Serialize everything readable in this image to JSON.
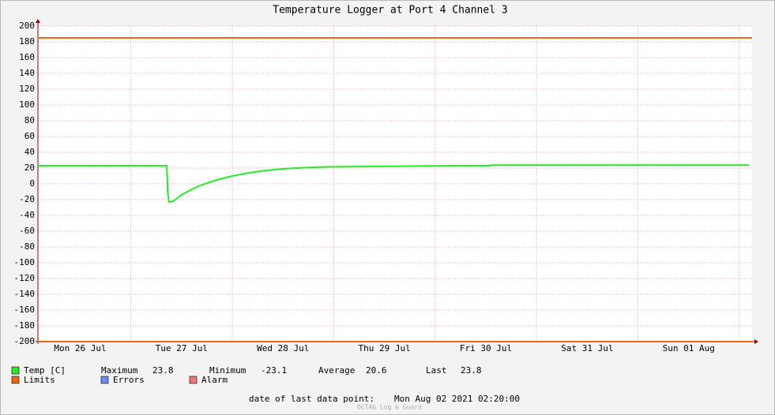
{
  "chart_data": {
    "type": "line",
    "title": "Temperature Logger at Port 4 Channel 3",
    "x": [
      2,
      32.5,
      32.7,
      33,
      34,
      35,
      36,
      38,
      40,
      42,
      45,
      48,
      52,
      56,
      60,
      65,
      70,
      80,
      90,
      100,
      108.9,
      109,
      130,
      150,
      170.3
    ],
    "series": [
      {
        "name": "Temp [C]",
        "color": "#22ee22",
        "values": [
          23,
          23,
          -10,
          -23,
          -22,
          -18,
          -14,
          -8,
          -3,
          1,
          6,
          10,
          14,
          17,
          19,
          20.5,
          21.5,
          22,
          22.5,
          23,
          23,
          23.8,
          23.8,
          23.8,
          23.8
        ]
      },
      {
        "name": "Limits",
        "color": "#ee6611",
        "limits": [
          185,
          -200
        ]
      },
      {
        "name": "Errors",
        "color": "#7788ee"
      },
      {
        "name": "Alarm",
        "color": "#ee7777"
      }
    ],
    "stats": [
      {
        "label": "Maximum",
        "value": 23.8
      },
      {
        "label": "Minimum",
        "value": -23.1
      },
      {
        "label": "Average",
        "value": 20.6
      },
      {
        "label": "Last",
        "value": 23.8
      }
    ],
    "xlim": [
      2,
      171
    ],
    "xticks": [
      {
        "value": 12,
        "label": "Mon 26 Jul"
      },
      {
        "value": 36,
        "label": "Tue 27 Jul"
      },
      {
        "value": 60,
        "label": "Wed 28 Jul"
      },
      {
        "value": 84,
        "label": "Thu 29 Jul"
      },
      {
        "value": 108,
        "label": "Fri 30 Jul"
      },
      {
        "value": 132,
        "label": "Sat 31 Jul"
      },
      {
        "value": 156,
        "label": "Sun 01 Aug"
      }
    ],
    "xgrid": [
      24,
      48,
      72,
      96,
      120,
      144,
      168
    ],
    "ylim": [
      -200,
      200
    ],
    "yticks": [
      -200,
      -180,
      -160,
      -140,
      -120,
      -100,
      -80,
      -60,
      -40,
      -20,
      0,
      20,
      40,
      60,
      80,
      100,
      120,
      140,
      160,
      180,
      200
    ],
    "grid": true,
    "footer_label": "date of last data point:",
    "footer_date": "Mon Aug 02 2021 02:20:00",
    "watermark": "OCTA& Log & Guard"
  }
}
